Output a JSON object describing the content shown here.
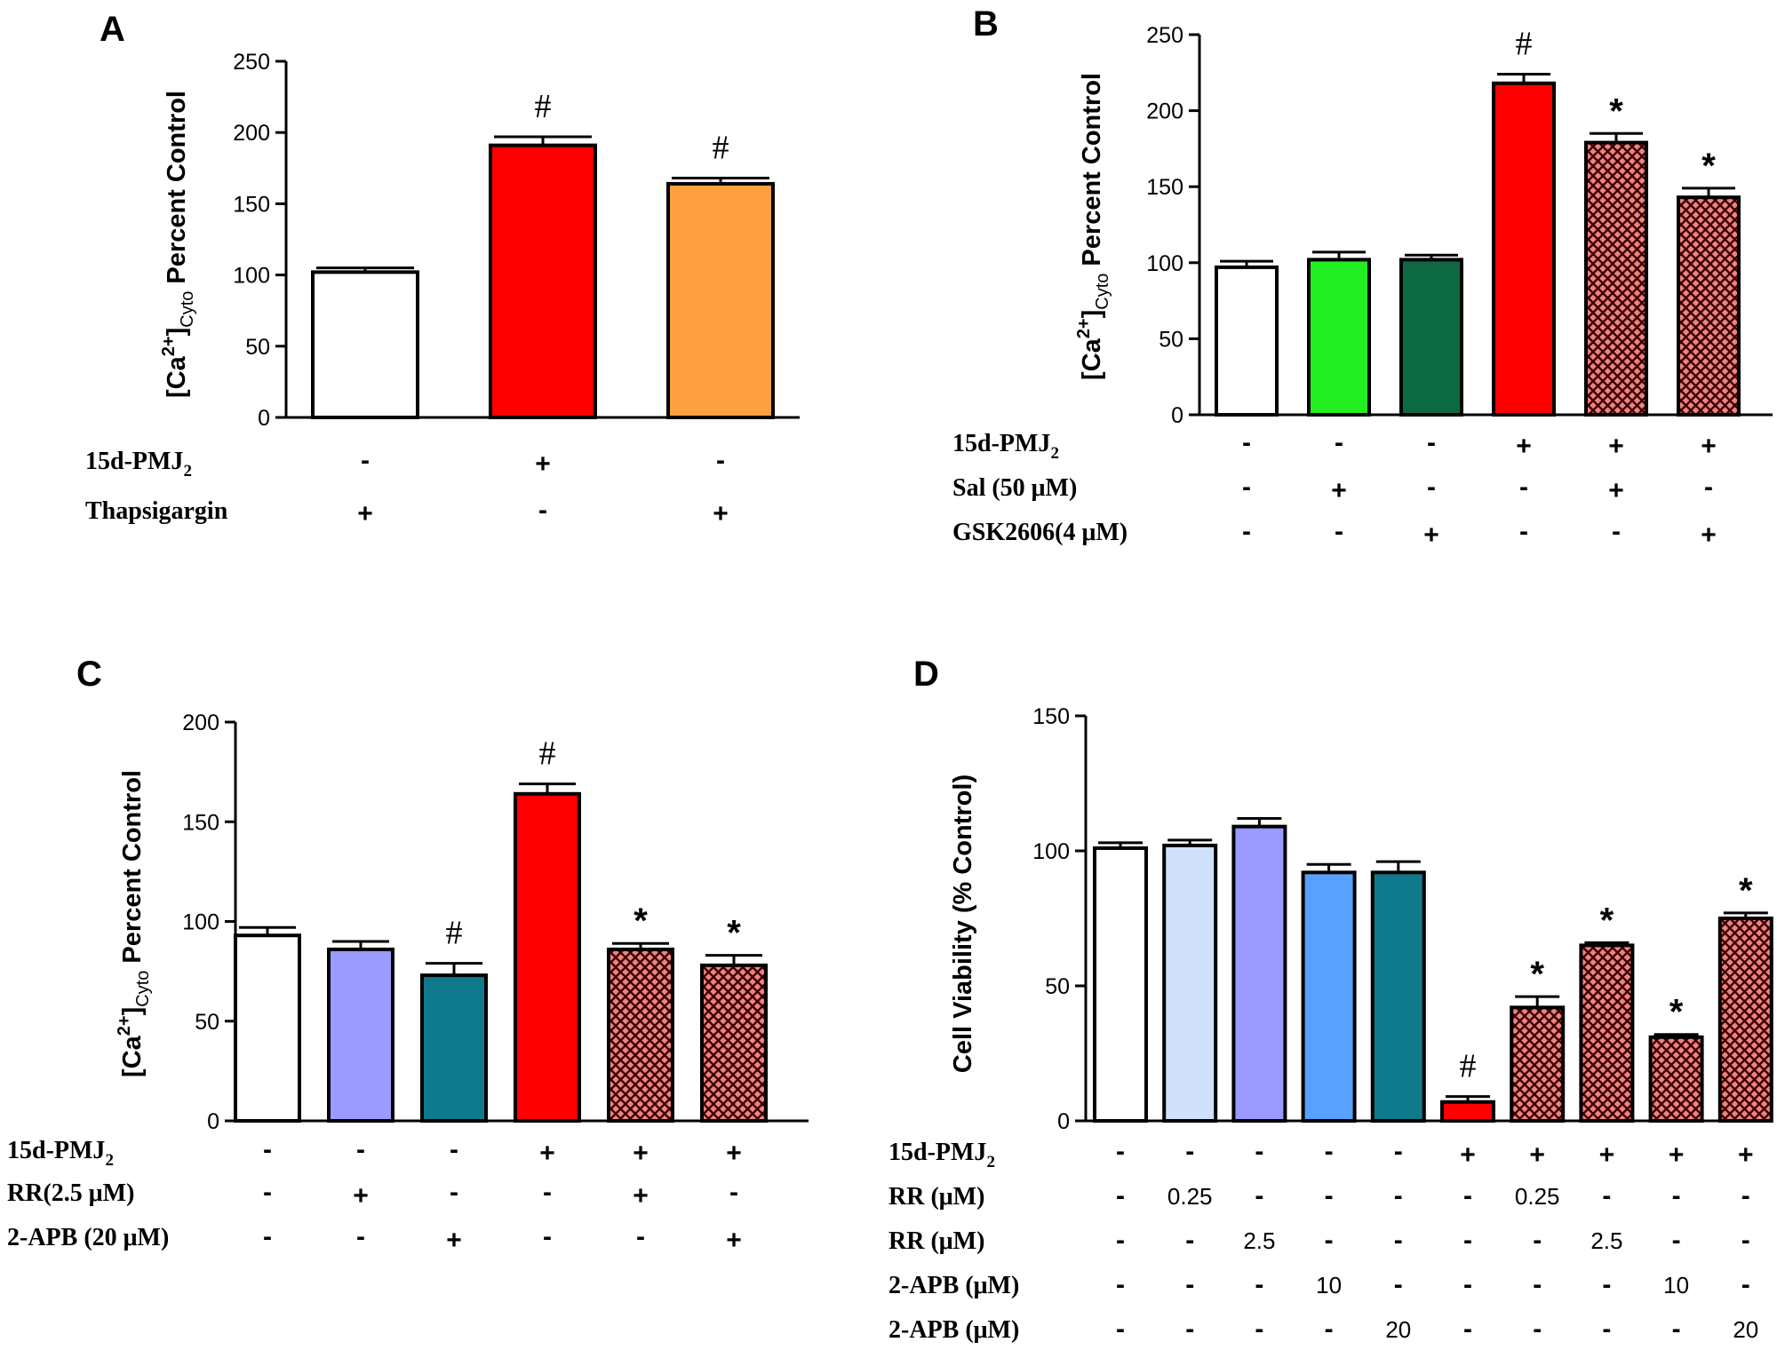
{
  "chart_data": [
    {
      "type": "bar",
      "panel": "A",
      "ylabel_parts": {
        "pre": "[Ca",
        "sup": "2+",
        "mid": "]",
        "sub": "Cyto",
        "post": " Percent Control"
      },
      "ylim": [
        0,
        250
      ],
      "yticks": [
        0,
        50,
        100,
        150,
        200,
        250
      ],
      "values": [
        102,
        191,
        164
      ],
      "errors": [
        3,
        6,
        4
      ],
      "colors": [
        "#ffffff",
        "#ff0000",
        "#ffa040"
      ],
      "patterns": [
        "solid",
        "solid",
        "solid"
      ],
      "annotations": [
        "",
        "#",
        "#"
      ],
      "treatments": [
        {
          "label": "15d-PMJ",
          "sub": "2",
          "cells": [
            "-",
            "+",
            "-"
          ]
        },
        {
          "label": "Thapsigargin",
          "sub": "",
          "cells": [
            "+",
            "-",
            "+"
          ]
        }
      ]
    },
    {
      "type": "bar",
      "panel": "B",
      "ylabel_parts": {
        "pre": "[Ca",
        "sup": "2+",
        "mid": "]",
        "sub": "Cyto",
        "post": " Percent Control"
      },
      "ylim": [
        0,
        250
      ],
      "yticks": [
        0,
        50,
        100,
        150,
        200,
        250
      ],
      "values": [
        97,
        102,
        102,
        218,
        179,
        143
      ],
      "errors": [
        4,
        5,
        3,
        6,
        6,
        6
      ],
      "colors": [
        "#ffffff",
        "#22ee22",
        "#0e6a42",
        "#ff0000",
        "#f08282",
        "#f08282"
      ],
      "patterns": [
        "solid",
        "solid",
        "solid",
        "solid",
        "cross",
        "cross"
      ],
      "annotations": [
        "",
        "",
        "",
        "#",
        "*",
        "*"
      ],
      "treatments": [
        {
          "label": "15d-PMJ",
          "sub": "2",
          "cells": [
            "-",
            "-",
            "-",
            "+",
            "+",
            "+"
          ]
        },
        {
          "label": "Sal (50 μM)",
          "sub": "",
          "cells": [
            "-",
            "+",
            "-",
            "-",
            "+",
            "-"
          ]
        },
        {
          "label": "GSK2606(4 μM)",
          "sub": "",
          "cells": [
            "-",
            "-",
            "+",
            "-",
            "-",
            "+"
          ]
        }
      ]
    },
    {
      "type": "bar",
      "panel": "C",
      "ylabel_parts": {
        "pre": "[Ca",
        "sup": "2+",
        "mid": "]",
        "sub": "Cyto",
        "post": " Percent Control"
      },
      "ylim": [
        0,
        200
      ],
      "yticks": [
        0,
        50,
        100,
        150,
        200
      ],
      "values": [
        93,
        86,
        73,
        164,
        86,
        78
      ],
      "errors": [
        4,
        4,
        6,
        5,
        3,
        5
      ],
      "colors": [
        "#ffffff",
        "#9a9aff",
        "#0e7a8c",
        "#ff0000",
        "#f08282",
        "#f08282"
      ],
      "patterns": [
        "solid",
        "solid",
        "solid",
        "solid",
        "cross",
        "cross"
      ],
      "annotations": [
        "",
        "",
        "#",
        "#",
        "*",
        "*"
      ],
      "treatments": [
        {
          "label": "15d-PMJ",
          "sub": "2",
          "cells": [
            "-",
            "-",
            "-",
            "+",
            "+",
            "+"
          ]
        },
        {
          "label": "RR(2.5 μM)",
          "sub": "",
          "cells": [
            "-",
            "+",
            "-",
            "-",
            "+",
            "-"
          ]
        },
        {
          "label": "2-APB (20 μM)",
          "sub": "",
          "cells": [
            "-",
            "-",
            "+",
            "-",
            "-",
            "+"
          ]
        }
      ]
    },
    {
      "type": "bar",
      "panel": "D",
      "ylabel": "Cell Viability (% Control)",
      "ylim": [
        0,
        150
      ],
      "yticks": [
        0,
        50,
        100,
        150
      ],
      "values": [
        101,
        102,
        109,
        92,
        92,
        7,
        42,
        65,
        31,
        75
      ],
      "errors": [
        2,
        2,
        3,
        3,
        4,
        2,
        4,
        1,
        1,
        2
      ],
      "colors": [
        "#ffffff",
        "#cfe0f8",
        "#9a9aff",
        "#5aa0ff",
        "#0e7a8c",
        "#ff0000",
        "#f08282",
        "#f08282",
        "#f08282",
        "#f08282"
      ],
      "patterns": [
        "solid",
        "solid",
        "solid",
        "solid",
        "solid",
        "solid",
        "cross",
        "cross",
        "cross",
        "cross"
      ],
      "annotations": [
        "",
        "",
        "",
        "",
        "",
        "#",
        "*",
        "*",
        "*",
        "*"
      ],
      "treatments": [
        {
          "label": "15d-PMJ",
          "sub": "2",
          "cells": [
            "-",
            "-",
            "-",
            "-",
            "-",
            "+",
            "+",
            "+",
            "+",
            "+"
          ]
        },
        {
          "label": "RR (μM)",
          "sub": "",
          "cells": [
            "-",
            "0.25",
            "-",
            "-",
            "-",
            "-",
            "0.25",
            "-",
            "-",
            "-"
          ]
        },
        {
          "label": "RR (μM)",
          "sub": "",
          "cells": [
            "-",
            "-",
            "2.5",
            "-",
            "-",
            "-",
            "-",
            "2.5",
            "-",
            "-"
          ]
        },
        {
          "label": "2-APB (μM)",
          "sub": "",
          "cells": [
            "-",
            "-",
            "-",
            "10",
            "-",
            "-",
            "-",
            "-",
            "10",
            "-"
          ]
        },
        {
          "label": "2-APB (μM)",
          "sub": "",
          "cells": [
            "-",
            "-",
            "-",
            "-",
            "20",
            "-",
            "-",
            "-",
            "-",
            "20"
          ]
        }
      ]
    }
  ]
}
